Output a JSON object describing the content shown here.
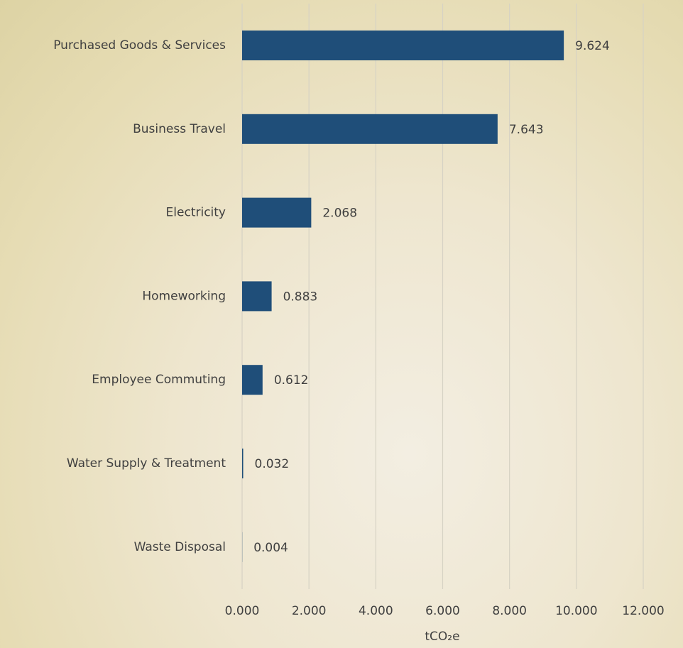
{
  "chart_data": {
    "type": "bar",
    "orientation": "horizontal",
    "categories": [
      "Purchased Goods & Services",
      "Business Travel",
      "Electricity",
      "Homeworking",
      "Employee Commuting",
      "Water Supply & Treatment",
      "Waste Disposal"
    ],
    "values": [
      9.624,
      7.643,
      2.068,
      0.883,
      0.612,
      0.032,
      0.004
    ],
    "color": "#1f4e79",
    "xlabel": "tCO₂e",
    "xlim": [
      0,
      12
    ],
    "xticks": [
      {
        "value": 0,
        "label": "0.000"
      },
      {
        "value": 2,
        "label": "2.000"
      },
      {
        "value": 4,
        "label": "4.000"
      },
      {
        "value": 6,
        "label": "6.000"
      },
      {
        "value": 8,
        "label": "8.000"
      },
      {
        "value": 10,
        "label": "10.000"
      },
      {
        "value": 12,
        "label": "12.000"
      }
    ],
    "grid": true
  }
}
